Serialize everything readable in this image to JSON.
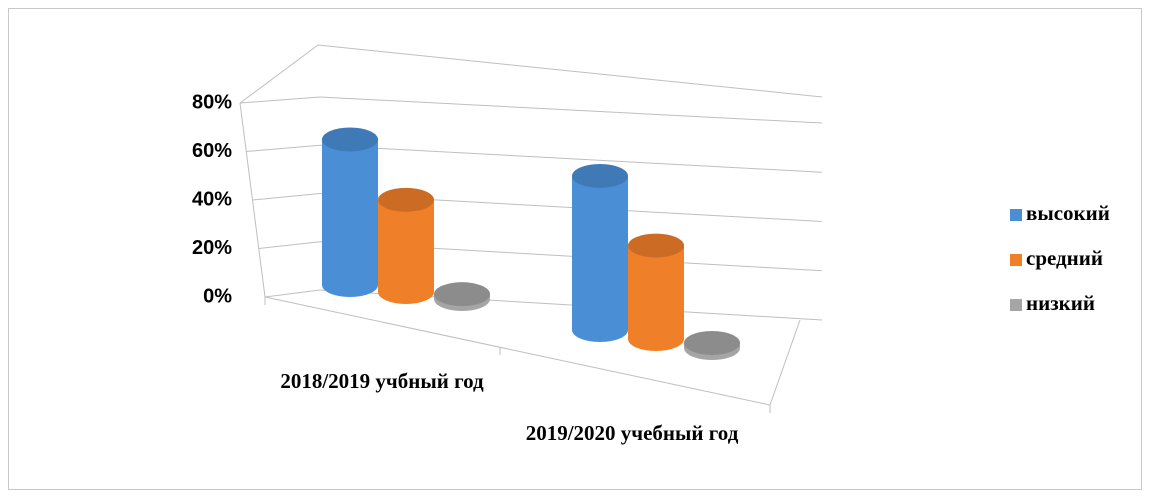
{
  "chart_data": {
    "type": "bar3d",
    "categories": [
      "2018/2019 учбный год",
      "2019/2020 учебный год"
    ],
    "series": [
      {
        "name": "высокий",
        "color": "#4a8fd6",
        "values": [
          60,
          61
        ]
      },
      {
        "name": "средний",
        "color": "#f07f2a",
        "values": [
          38,
          37
        ]
      },
      {
        "name": "низкий",
        "color": "#a5a5a5",
        "values": [
          2,
          2
        ]
      }
    ],
    "ylim": [
      0,
      80
    ],
    "yticks": [
      {
        "value": 0,
        "label": "0%"
      },
      {
        "value": 20,
        "label": "20%"
      },
      {
        "value": 40,
        "label": "40%"
      },
      {
        "value": 60,
        "label": "60%"
      },
      {
        "value": 80,
        "label": "80%"
      }
    ],
    "grid": true,
    "legend": "right"
  }
}
